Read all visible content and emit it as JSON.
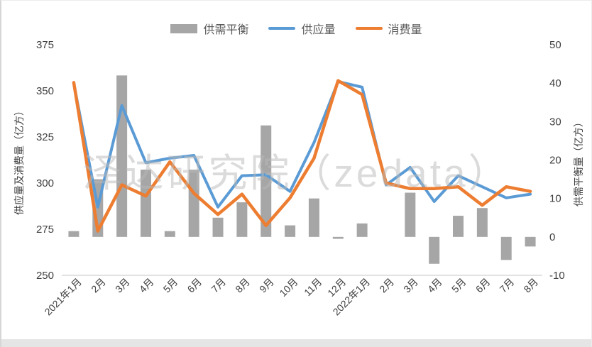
{
  "chart_data": {
    "type": "combo",
    "title": "",
    "watermark": "泽达研究院（zedata）",
    "categories": [
      "2021年1月",
      "2月",
      "3月",
      "4月",
      "5月",
      "6月",
      "7月",
      "8月",
      "9月",
      "10月",
      "11月",
      "12月",
      "2022年1月",
      "2月",
      "3月",
      "4月",
      "5月",
      "6月",
      "7月",
      "8月"
    ],
    "series": [
      {
        "name": "供需平衡",
        "type": "bar",
        "axis": "right",
        "color": "#a6a6a6",
        "values": [
          1.5,
          15,
          42,
          17.5,
          1.5,
          17.5,
          5,
          9,
          29,
          3,
          10,
          -0.5,
          3.5,
          0,
          11.5,
          -7,
          5.5,
          7.5,
          -6,
          -2.5
        ]
      },
      {
        "name": "供应量",
        "type": "line",
        "axis": "left",
        "color": "#5b9bd5",
        "values": [
          354,
          287,
          342,
          311,
          313.5,
          315,
          287,
          304,
          304.5,
          295.5,
          322,
          355,
          352,
          299,
          308.5,
          290,
          304,
          298,
          292,
          294
        ]
      },
      {
        "name": "消费量",
        "type": "line",
        "axis": "left",
        "color": "#ed7d31",
        "values": [
          354.5,
          274,
          299,
          293,
          311.5,
          294.5,
          283,
          294,
          277,
          292,
          313.5,
          355.5,
          348,
          300,
          297,
          297,
          298,
          288,
          298,
          295.5
        ]
      }
    ],
    "left_axis": {
      "title": "供应量及消费量（亿方）",
      "min": 250,
      "max": 375,
      "step": 25
    },
    "right_axis": {
      "title": "供需平衡量（亿方）",
      "min": -10,
      "max": 50,
      "step": 10
    },
    "legend_position": "top",
    "grid": false
  }
}
